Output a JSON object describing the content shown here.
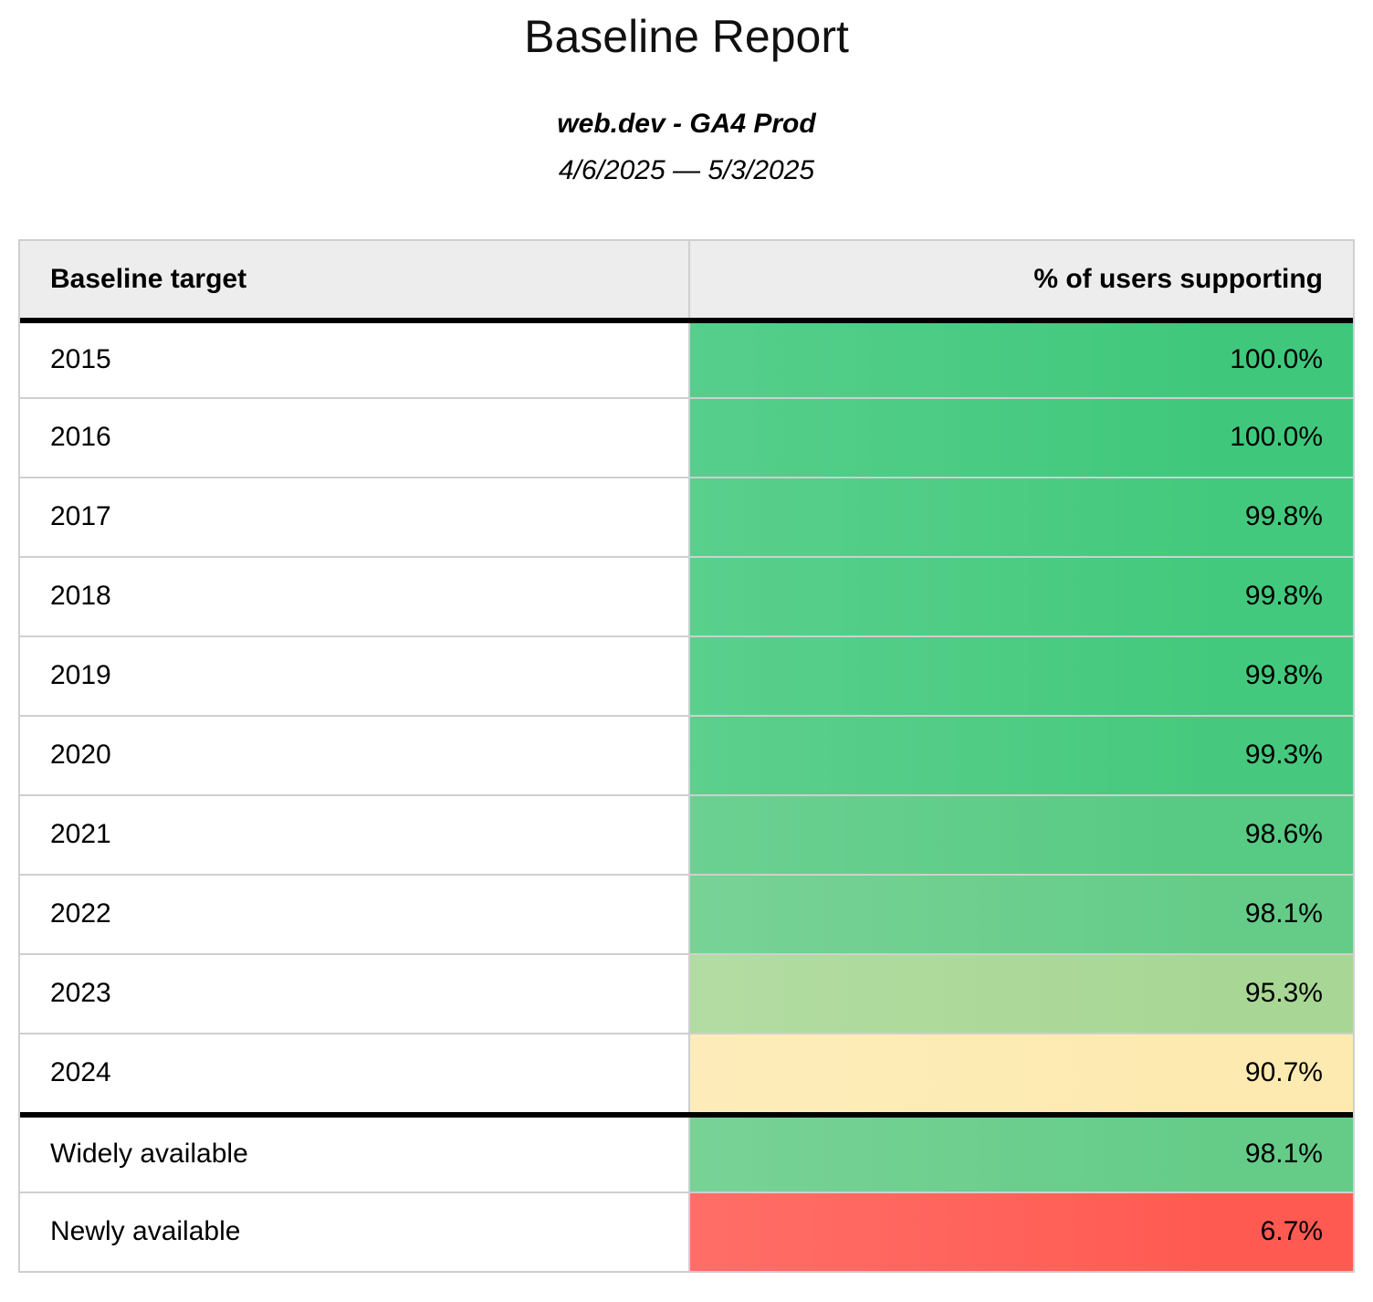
{
  "header": {
    "title": "Baseline Report",
    "property": "web.dev - GA4 Prod",
    "date_range": "4/6/2025 — 5/3/2025"
  },
  "table": {
    "columns": [
      "Baseline target",
      "% of users supporting"
    ],
    "rows": [
      {
        "label": "2015",
        "value": "100.0%",
        "color": "#3fc87c",
        "section_start": false
      },
      {
        "label": "2016",
        "value": "100.0%",
        "color": "#3fc87c",
        "section_start": false
      },
      {
        "label": "2017",
        "value": "99.8%",
        "color": "#43c97d",
        "section_start": false
      },
      {
        "label": "2018",
        "value": "99.8%",
        "color": "#43c97d",
        "section_start": false
      },
      {
        "label": "2019",
        "value": "99.8%",
        "color": "#43c97d",
        "section_start": false
      },
      {
        "label": "2020",
        "value": "99.3%",
        "color": "#46c97e",
        "section_start": false
      },
      {
        "label": "2021",
        "value": "98.6%",
        "color": "#57ca83",
        "section_start": false
      },
      {
        "label": "2022",
        "value": "98.1%",
        "color": "#65cc88",
        "section_start": false
      },
      {
        "label": "2023",
        "value": "95.3%",
        "color": "#a8d795",
        "section_start": false
      },
      {
        "label": "2024",
        "value": "90.7%",
        "color": "#fdeab0",
        "section_start": false
      },
      {
        "label": "Widely available",
        "value": "98.1%",
        "color": "#65cc88",
        "section_start": true
      },
      {
        "label": "Newly available",
        "value": "6.7%",
        "color": "#ff5a52",
        "section_start": false
      }
    ]
  },
  "colors": {
    "header_background": "#ededed",
    "grid_line": "#cfcfcf",
    "section_divider": "#000000",
    "text": "#000000"
  },
  "chart_data": {
    "type": "table",
    "title": "Baseline Report",
    "subtitle": "web.dev - GA4 Prod",
    "date_range": "4/6/2025 — 5/3/2025",
    "columns": [
      "Baseline target",
      "% of users supporting"
    ],
    "categories": [
      "2015",
      "2016",
      "2017",
      "2018",
      "2019",
      "2020",
      "2021",
      "2022",
      "2023",
      "2024",
      "Widely available",
      "Newly available"
    ],
    "values": [
      100.0,
      100.0,
      99.8,
      99.8,
      99.8,
      99.3,
      98.6,
      98.1,
      95.3,
      90.7,
      98.1,
      6.7
    ],
    "value_unit": "percent",
    "cell_colors": [
      "#3fc87c",
      "#3fc87c",
      "#43c97d",
      "#43c97d",
      "#43c97d",
      "#46c97e",
      "#57ca83",
      "#65cc88",
      "#a8d795",
      "#fdeab0",
      "#65cc88",
      "#ff5a52"
    ],
    "notes": "Conditional-format color scale from green (high support) through yellow to red (low support); thick black rules separate header, year rows, and availability rows"
  }
}
